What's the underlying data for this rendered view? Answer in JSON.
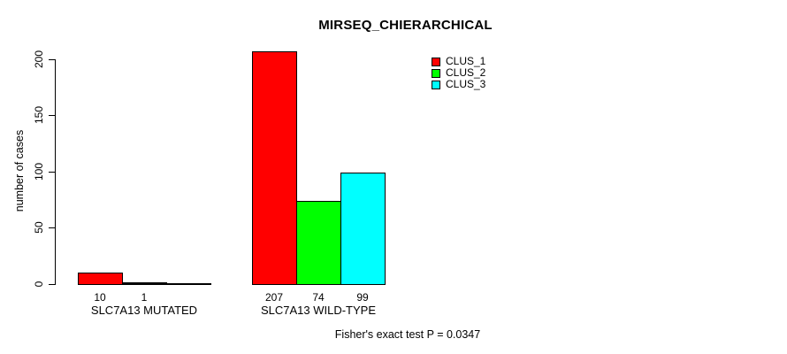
{
  "chart_data": {
    "type": "bar",
    "title": "MIRSEQ_CHIERARCHICAL",
    "ylabel": "number of cases",
    "xlabel": "",
    "ylim": [
      0,
      200
    ],
    "yticks": [
      0,
      50,
      100,
      150,
      200
    ],
    "grid": false,
    "legend_position": "top-right",
    "legend": [
      {
        "label": "CLUS_1",
        "color": "#ff0000"
      },
      {
        "label": "CLUS_2",
        "color": "#00ff00"
      },
      {
        "label": "CLUS_3",
        "color": "#00ffff"
      }
    ],
    "groups": [
      {
        "label": "SLC7A13 MUTATED",
        "values": [
          10,
          1,
          0
        ],
        "bar_labels": [
          "10",
          "1",
          ""
        ]
      },
      {
        "label": "SLC7A13 WILD-TYPE",
        "values": [
          207,
          74,
          99
        ],
        "bar_labels": [
          "207",
          "74",
          "99"
        ]
      }
    ],
    "annotation": "Fisher's exact test P = 0.0347"
  }
}
